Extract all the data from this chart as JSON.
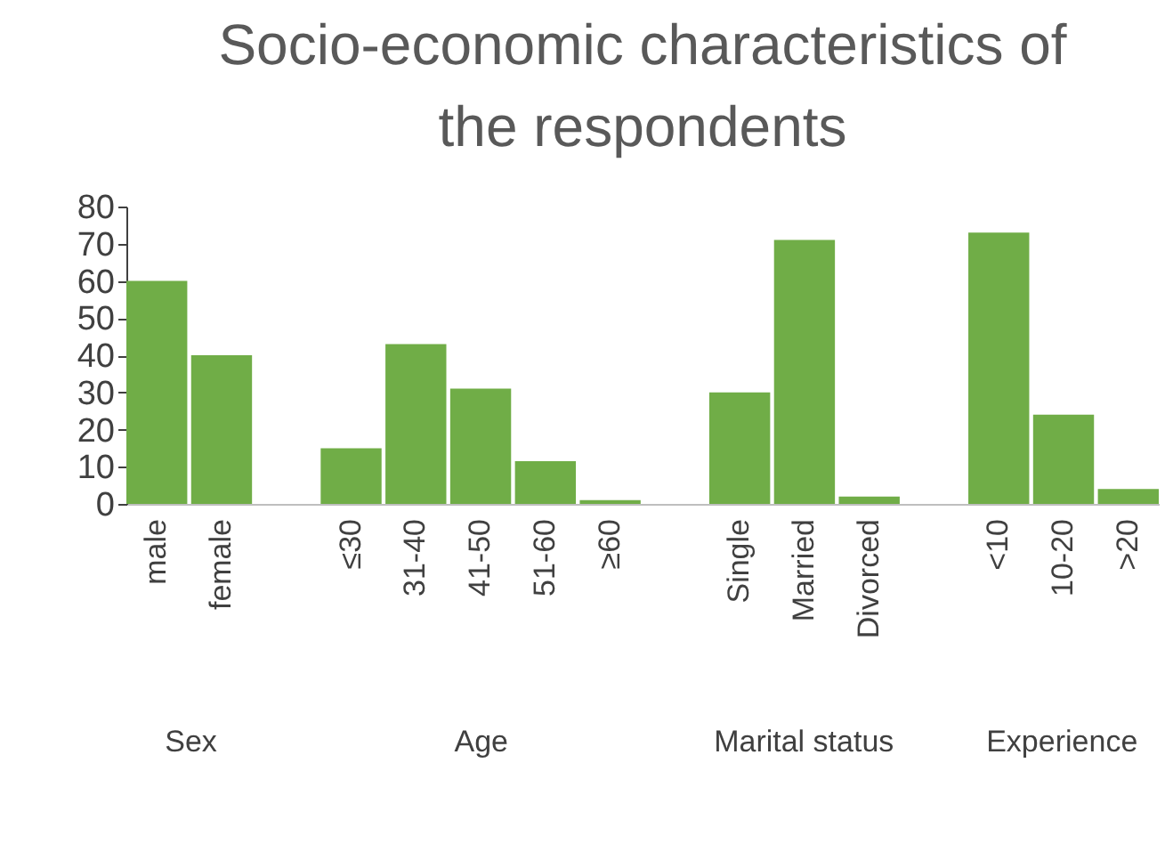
{
  "chart_data": {
    "type": "bar",
    "title": "Socio-economic characteristics of the respondents",
    "categories": [
      "male",
      "female",
      null,
      "≤30",
      "31-40",
      "41-50",
      "51-60",
      "≥60",
      null,
      "Single",
      "Married",
      "Divorced",
      null,
      "<10",
      "10-20",
      ">20"
    ],
    "values": [
      60,
      40,
      null,
      15,
      43,
      31,
      11.5,
      1,
      null,
      30,
      71,
      2,
      null,
      73,
      24,
      4
    ],
    "color": "#70ad47",
    "annotations": [
      "Sex",
      "Age",
      "Marital status",
      "Experience"
    ],
    "ylim": [
      0,
      80
    ],
    "yticks": [
      0,
      10,
      20,
      30,
      40,
      50,
      60,
      70,
      80
    ],
    "grid": false
  }
}
